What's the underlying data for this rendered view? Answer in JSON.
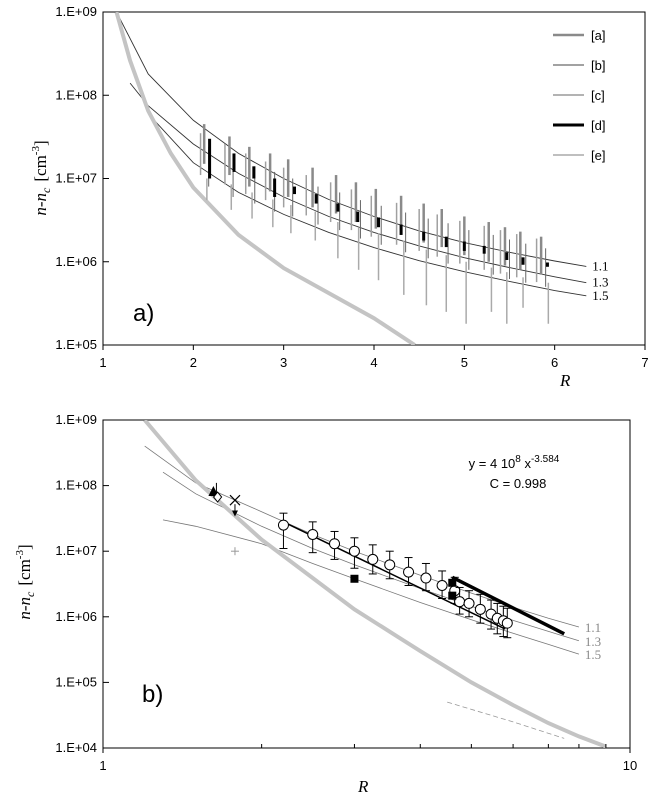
{
  "chart_data": [
    {
      "id": "a",
      "type": "line",
      "panel_label": "a)",
      "xlabel": "R",
      "ylabel": "n-n c [cm-3]",
      "ylabel_main": "n-n",
      "ylabel_sub": "c",
      "ylabel_unit": "[cm",
      "ylabel_exp": "-3",
      "ylabel_close": "]",
      "x_scale": "linear",
      "y_scale": "log",
      "xlim": [
        1,
        7
      ],
      "ylim": [
        100000,
        1000000000
      ],
      "x_ticks": [
        1,
        2,
        3,
        4,
        5,
        6,
        7
      ],
      "x_tick_labels": [
        "1",
        "2",
        "3",
        "4",
        "5",
        "6",
        "7"
      ],
      "y_ticks": [
        100000,
        1000000,
        10000000,
        100000000,
        1000000000
      ],
      "y_tick_labels": [
        "1.E+05",
        "1.E+06",
        "1.E+07",
        "1.E+08",
        "1.E+09"
      ],
      "legend": [
        "[a]",
        "[b]",
        "[c]",
        "[d]",
        "[e]"
      ],
      "legend_position": "top-right",
      "reference_curves": [
        {
          "label": "1.1",
          "x": [
            1.15,
            1.5,
            2,
            2.5,
            3,
            3.5,
            4,
            4.5,
            5,
            5.5,
            6,
            6.35
          ],
          "y": [
            1000000000,
            180000000,
            50000000,
            20000000,
            10000000,
            5600000,
            3500000,
            2350000,
            1700000,
            1300000,
            1020000,
            880000
          ]
        },
        {
          "label": "1.3",
          "x": [
            1.3,
            1.5,
            2,
            2.5,
            3,
            3.5,
            4,
            4.5,
            5,
            5.5,
            6,
            6.35
          ],
          "y": [
            140000000,
            75000000,
            26000000,
            11500000,
            6000000,
            3500000,
            2250000,
            1550000,
            1120000,
            850000,
            660000,
            560000
          ]
        },
        {
          "label": "1.5",
          "x": [
            1.5,
            2,
            2.5,
            3,
            3.5,
            4,
            4.5,
            5,
            5.5,
            6,
            6.35
          ],
          "y": [
            60000000,
            15500000,
            6800000,
            3700000,
            2250000,
            1480000,
            1030000,
            760000,
            580000,
            450000,
            390000
          ]
        },
        {
          "label": "",
          "style": "thick-gray",
          "x": [
            1.15,
            1.3,
            1.5,
            1.75,
            2,
            2.5,
            3,
            3.5,
            4,
            4.45
          ],
          "y": [
            1000000000,
            260000000,
            65000000,
            20000000,
            7800000,
            2100000,
            840000,
            420000,
            210000,
            100000
          ]
        }
      ],
      "error_bars": [
        {
          "series": "[a]",
          "x": [
            2.12,
            2.4,
            2.62,
            2.85,
            3.05,
            3.32,
            3.58,
            3.8,
            4.02,
            4.3,
            4.55,
            4.75,
            5.0,
            5.27,
            5.45,
            5.62,
            5.85
          ],
          "low": [
            15000000,
            11000000,
            8000000,
            7000000,
            6000000,
            4500000,
            3800000,
            3000000,
            2500000,
            2100000,
            1700000,
            1500000,
            1200000,
            1000000,
            900000,
            800000,
            700000
          ],
          "high": [
            45000000,
            32000000,
            24000000,
            20000000,
            17000000,
            13500000,
            11000000,
            9000000,
            7500000,
            6200000,
            5000000,
            4300000,
            3500000,
            3000000,
            2600000,
            2300000,
            2000000
          ]
        },
        {
          "series": "[b]",
          "x": [
            2.17,
            2.44,
            2.68,
            2.9,
            3.1,
            3.38,
            3.62,
            3.85,
            4.08,
            4.35,
            4.6,
            4.82,
            5.05,
            5.32,
            5.5,
            5.68,
            5.9
          ],
          "low": [
            8000000,
            6000000,
            5000000,
            4000000,
            3500000,
            2800000,
            2400000,
            1900000,
            1600000,
            1300000,
            1100000,
            950000,
            800000,
            700000,
            620000,
            560000,
            500000
          ],
          "high": [
            24000000,
            18000000,
            14000000,
            12000000,
            10000000,
            8000000,
            6800000,
            5500000,
            4700000,
            3900000,
            3300000,
            2900000,
            2400000,
            2100000,
            1850000,
            1650000,
            1450000
          ]
        },
        {
          "series": "[c]",
          "x": [
            2.08,
            2.35,
            2.58,
            2.8,
            3.0,
            3.25,
            3.52,
            3.75,
            3.97,
            4.25,
            4.5,
            4.7,
            4.95,
            5.22,
            5.4,
            5.58,
            5.8
          ],
          "low": [
            11000000,
            8500000,
            6500000,
            5500000,
            4500000,
            3600000,
            3000000,
            2400000,
            2000000,
            1600000,
            1350000,
            1150000,
            950000,
            800000,
            720000,
            650000,
            570000
          ],
          "high": [
            35000000,
            26000000,
            20000000,
            16000000,
            13500000,
            11000000,
            9000000,
            7400000,
            6200000,
            5100000,
            4300000,
            3700000,
            3100000,
            2700000,
            2400000,
            2150000,
            1900000
          ]
        },
        {
          "series": "[d]",
          "x": [
            2.18,
            2.45,
            2.67,
            2.9,
            3.12,
            3.36,
            3.6,
            3.82,
            4.05,
            4.3,
            4.55,
            4.8,
            5.0,
            5.22,
            5.47,
            5.65,
            5.92
          ],
          "low": [
            10000000,
            12000000,
            10000000,
            6000000,
            6500000,
            5000000,
            4000000,
            3000000,
            2600000,
            2100000,
            1800000,
            1500000,
            1350000,
            1250000,
            1050000,
            920000,
            870000
          ],
          "high": [
            30000000,
            20000000,
            14000000,
            10000000,
            8000000,
            6500000,
            5000000,
            4000000,
            3400000,
            2800000,
            2300000,
            2000000,
            1750000,
            1550000,
            1300000,
            1130000,
            980000
          ]
        },
        {
          "series": "[e]",
          "x": [
            2.15,
            2.42,
            2.65,
            2.88,
            3.08,
            3.35,
            3.6,
            3.83,
            4.05,
            4.33,
            4.58,
            4.8,
            5.02,
            5.3,
            5.47,
            5.65,
            5.93
          ],
          "low": [
            5500000,
            4200000,
            3300000,
            2600000,
            2200000,
            1800000,
            1100000,
            800000,
            600000,
            400000,
            300000,
            250000,
            180000,
            250000,
            180000,
            280000,
            180000
          ],
          "high": [
            10000000,
            8500000,
            6800000,
            5600000,
            4800000,
            4000000,
            3000000,
            2600000,
            2200000,
            1800000,
            1400000,
            1200000,
            1000000,
            850000,
            750000,
            650000,
            560000
          ]
        }
      ]
    },
    {
      "id": "b",
      "type": "scatter",
      "panel_label": "b)",
      "xlabel": "R",
      "ylabel": "n-n c [cm-3]",
      "ylabel_main": "n-n",
      "ylabel_sub": "c",
      "ylabel_unit": "[cm",
      "ylabel_exp": "-3",
      "ylabel_close": "]",
      "x_scale": "log",
      "y_scale": "log",
      "xlim": [
        1,
        10
      ],
      "ylim": [
        10000,
        1000000000
      ],
      "x_ticks": [
        1,
        10
      ],
      "x_tick_labels": [
        "1",
        "10"
      ],
      "y_ticks": [
        10000,
        100000,
        1000000,
        10000000,
        100000000,
        1000000000
      ],
      "y_tick_labels": [
        "1.E+04",
        "1.E+05",
        "1.E+06",
        "1.E+07",
        "1.E+08",
        "1.E+09"
      ],
      "fit_equation": "y = 4 10",
      "fit_exp_base": "8",
      "fit_x": " x",
      "fit_exponent": "-3.584",
      "fit_correlation": "C = 0.998",
      "fit_line": {
        "x": [
          2.2,
          5.8
        ],
        "y": [
          28000000,
          650000
        ]
      },
      "open_circles": {
        "x": [
          2.2,
          2.5,
          2.75,
          3.0,
          3.25,
          3.5,
          3.8,
          4.1,
          4.4,
          4.65,
          4.75,
          4.95,
          5.2,
          5.45,
          5.6,
          5.75,
          5.85
        ],
        "y": [
          25000000,
          18000000,
          13000000,
          10000000,
          7500000,
          6200000,
          4800000,
          3900000,
          3000000,
          2500000,
          1700000,
          1600000,
          1300000,
          1100000,
          950000,
          870000,
          800000
        ],
        "err_low": [
          11000000,
          9500000,
          7500000,
          5500000,
          4500000,
          3800000,
          3000000,
          2500000,
          1900000,
          1600000,
          1100000,
          1000000,
          800000,
          650000,
          550000,
          500000,
          480000
        ],
        "err_high": [
          38000000,
          28000000,
          20000000,
          16000000,
          12500000,
          10000000,
          8000000,
          6500000,
          5000000,
          4000000,
          2800000,
          2500000,
          2200000,
          1800000,
          1600000,
          1450000,
          1350000
        ]
      },
      "thin_curves": [
        {
          "label": "1.1",
          "x": [
            1.2,
            1.5,
            2,
            2.5,
            3,
            4,
            5,
            6,
            7,
            8
          ],
          "y": [
            400000000,
            110000000,
            40000000,
            18000000,
            10000000,
            4300000,
            2300000,
            1400000,
            950000,
            700000
          ]
        },
        {
          "label": "1.3",
          "x": [
            1.3,
            1.5,
            2,
            2.5,
            3,
            4,
            5,
            6,
            7,
            8
          ],
          "y": [
            160000000,
            75000000,
            24000000,
            11000000,
            6200000,
            2700000,
            1450000,
            880000,
            600000,
            430000
          ]
        },
        {
          "label": "1.5",
          "x": [
            1.3,
            1.5,
            2,
            2.5,
            3,
            4,
            5,
            6,
            7,
            8
          ],
          "y": [
            30000000,
            24000000,
            13000000,
            6500000,
            3800000,
            1650000,
            900000,
            560000,
            380000,
            270000
          ]
        }
      ],
      "thick_gray_curve": {
        "x": [
          1.2,
          1.5,
          2,
          3,
          4,
          5,
          6,
          7,
          8,
          9
        ],
        "y": [
          1000000000,
          120000000,
          15000000,
          1300000,
          300000,
          100000,
          45000,
          24000,
          15000,
          10500
        ]
      },
      "dashed_curve": {
        "x": [
          4.5,
          6,
          7.5
        ],
        "y": [
          50000,
          25000,
          14000
        ]
      },
      "thick_black_line": {
        "x": [
          4.6,
          7.5
        ],
        "y": [
          4000000,
          550000
        ]
      },
      "filled_squares": {
        "x": [
          3.0,
          4.6,
          4.6
        ],
        "y": [
          3800000,
          3300000,
          2100000
        ]
      },
      "filled_triangle": {
        "x": [
          1.62
        ],
        "y": [
          80000000
        ]
      },
      "open_diamond": {
        "x": [
          1.65
        ],
        "y": [
          67000000
        ]
      },
      "cross_marker": {
        "x": [
          1.78
        ],
        "y": [
          60000000
        ]
      },
      "plus_marker": {
        "x": [
          1.78
        ],
        "y": [
          10000000
        ]
      },
      "cross_arrow_to": {
        "x": [
          1.78
        ],
        "y": [
          35000000
        ]
      },
      "triangle_bar": {
        "x": [
          1.62
        ],
        "y_low": [
          67000000
        ],
        "y_high": [
          110000000
        ]
      }
    }
  ]
}
